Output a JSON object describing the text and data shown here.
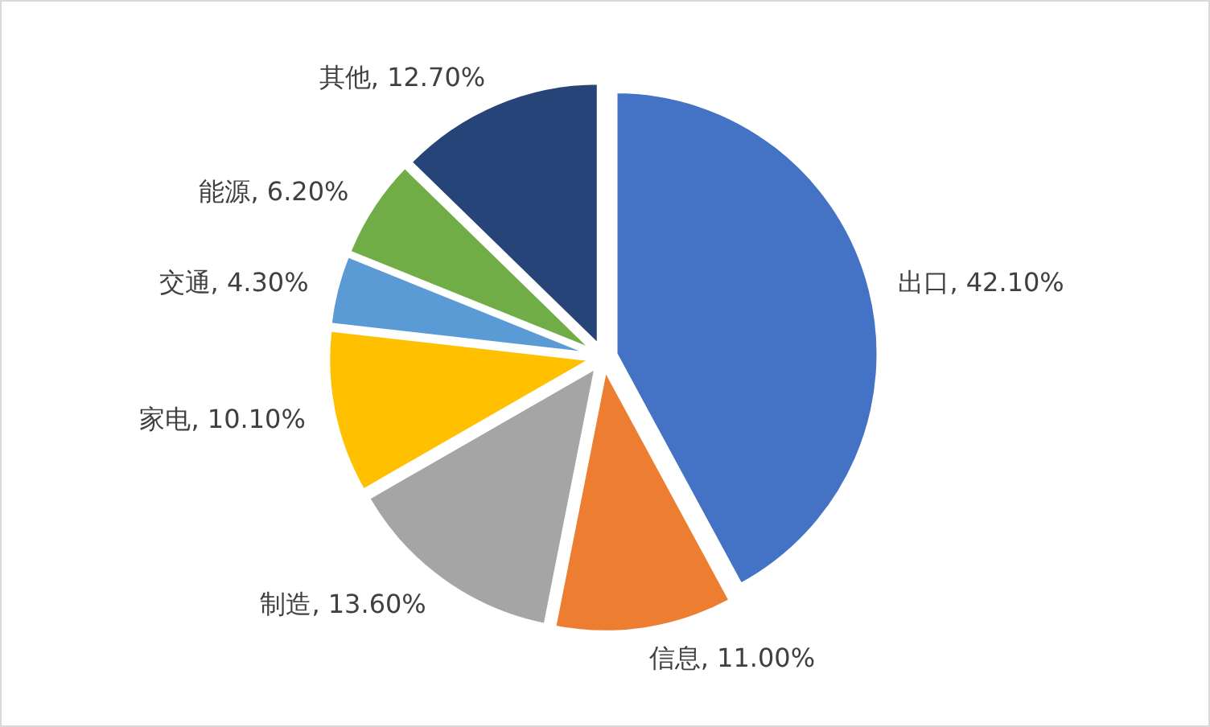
{
  "chart_data": {
    "type": "pie",
    "categories": [
      "出口",
      "信息",
      "制造",
      "家电",
      "交通",
      "能源",
      "其他"
    ],
    "values": [
      42.1,
      11.0,
      13.6,
      10.1,
      4.3,
      6.2,
      12.7
    ],
    "value_labels": [
      "42.10%",
      "11.00%",
      "13.60%",
      "10.10%",
      "4.30%",
      "6.20%",
      "12.70%"
    ],
    "colors": [
      "#4472c4",
      "#ed7d31",
      "#a5a5a5",
      "#ffc000",
      "#5b9bd5",
      "#70ad47",
      "#264478"
    ]
  }
}
